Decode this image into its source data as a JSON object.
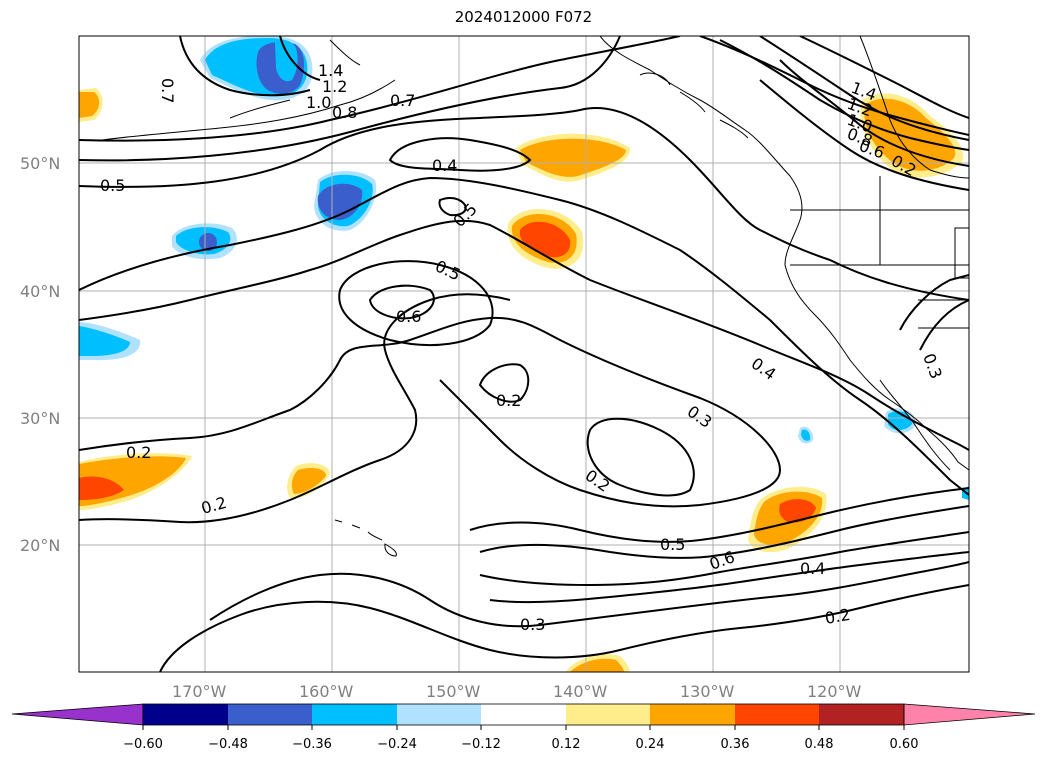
{
  "title": "2024012000 F072",
  "map": {
    "lat_labels": [
      "50°N",
      "40°N",
      "30°N",
      "20°N"
    ],
    "lon_labels": [
      "170°W",
      "160°W",
      "150°W",
      "140°W",
      "130°W",
      "120°W"
    ],
    "contour_labels": [
      "0.7",
      "1.4",
      "1.2",
      "1.0",
      "0.8",
      "0.7",
      "0.5",
      "0.4",
      "0.5",
      "0.5",
      "0.6",
      "0.2",
      "0.2",
      "0.3",
      "0.2",
      "0.4",
      "0.3",
      "0.2",
      "0.5",
      "0.6",
      "0.4",
      "0.3",
      "0.2",
      "1.4",
      "1.2",
      "1.0",
      "0.8",
      "0.6",
      "0.2"
    ],
    "colors": {
      "neg_060": "#9932cc",
      "neg_048": "#00008b",
      "neg_036": "#3a5fcd",
      "neg_024": "#00bfff",
      "neg_012": "#b0e2ff",
      "neutral": "#ffffff",
      "pos_012": "#ffec8b",
      "pos_024": "#ffa500",
      "pos_036": "#ff4500",
      "pos_048": "#b22222",
      "pos_060": "#ff82ab",
      "grid": "#b0b0b0",
      "contour": "#000000"
    }
  },
  "colorbar": {
    "ticks": [
      "−0.60",
      "−0.48",
      "−0.36",
      "−0.24",
      "−0.12",
      "0.12",
      "0.24",
      "0.36",
      "0.48",
      "0.60"
    ]
  }
}
